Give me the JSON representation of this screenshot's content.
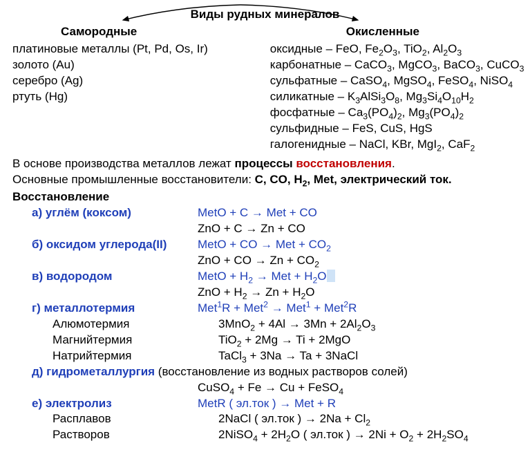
{
  "title": "Виды рудных минералов",
  "heads": {
    "left": "Самородные",
    "right": "Окисленные"
  },
  "native": [
    "платиновые металлы (Pt, Pd, Os, Ir)",
    "золото  (Au)",
    "серебро (Ag)",
    "ртуть (Hg)"
  ],
  "oxidized": [
    {
      "name": "оксидные – ",
      "formula_html": "FeO, Fe<sub>2</sub>O<sub>3</sub>, TiO<sub>2</sub>, Al<sub>2</sub>O<sub>3</sub>"
    },
    {
      "name": "карбонатные – ",
      "formula_html": "CaCO<sub>3</sub>, MgCO<sub>3</sub>,  BaCO<sub>3</sub>, CuCO<sub>3</sub>"
    },
    {
      "name": "сульфатные – ",
      "formula_html": "CaSO<sub>4</sub>, MgSO<sub>4</sub>, FeSO<sub>4</sub>, NiSO<sub>4</sub>"
    },
    {
      "name": "силикатные – ",
      "formula_html": "K<sub>3</sub>AlSi<sub>3</sub>O<sub>8</sub>, Mg<sub>3</sub>Si<sub>4</sub>O<sub>10</sub>H<sub>2</sub>"
    },
    {
      "name": "фосфатные – ",
      "formula_html": "Ca<sub>3</sub>(PO<sub>4</sub>)<sub>2</sub>,  Mg<sub>3</sub>(PO<sub>4</sub>)<sub>2</sub>"
    },
    {
      "name": "сульфидные – ",
      "formula_html": "FeS, CuS, HgS"
    },
    {
      "name": "галогенидные – ",
      "formula_html": "NaCl, KBr,  MgI<sub>2</sub>, CaF<sub>2</sub>"
    }
  ],
  "p1": {
    "pre": "В основе производства металлов лежат ",
    "bold": "процессы ",
    "red": "восстановления",
    "post": "."
  },
  "p2": {
    "pre": "Основные промышленные восстановители: ",
    "bold_html": "C, CO, H<sub>2</sub>, Met, электрический ток."
  },
  "section": "Восстановление",
  "methods": [
    {
      "label": "а) углём (коксом)",
      "eq_blue_html": "МetO  +  C   →   Met  +  CO",
      "eq2_html": "ZnO  +  C  →  Zn  +  CO"
    },
    {
      "label": "б) оксидом углерода(II)",
      "eq_blue_html": "МetO  +  CO  →   Met  +  CO<sub>2</sub>",
      "eq2_html": "ZnO  +  CO  →  Zn  +  CO<sub>2</sub>"
    },
    {
      "label": "в)  водородом",
      "eq_blue_html": "МetO  +  H<sub>2</sub>   →   Met  +  H<sub>2</sub>O",
      "eq2_html": "ZnO  +  H<sub>2</sub>  →  Zn  +  H<sub>2</sub>O",
      "highlight_after": true
    },
    {
      "label": "г)  металлотермия",
      "eq_blue_html": "Met<sup>1</sup>R  +  Met<sup>2</sup> →   Met<sup>1</sup>  +  Met<sup>2</sup>R",
      "subs": [
        {
          "name": "Алюмотермия",
          "eq_html": "3MnO<sub>2</sub>  +  4Al  →  3Mn  +  2Al<sub>2</sub>O<sub>3</sub>"
        },
        {
          "name": "Магнийтермия",
          "eq_html": "TiO<sub>2</sub>  +  2Mg  →  Ti  +  2MgO"
        },
        {
          "name": "Натрийтермия",
          "eq_html": "TaCl<sub>3</sub>  +  3Na →  Ta  +  3NaCl"
        }
      ]
    },
    {
      "label": "д) гидрометаллургия",
      "note": " (восстановление из водных растворов солей)",
      "eq2_html": "CuSO<sub>4</sub> + Fe → Cu + FeSO<sub>4</sub>"
    },
    {
      "label": "е) электролиз",
      "eq_blue_html": "МetR   ( эл.ток ) →  Met  +  R",
      "subs": [
        {
          "name": "Расплавов",
          "eq_html": "2NaCl  ( эл.ток ) → 2Na  +  Cl<sub>2</sub>"
        },
        {
          "name": "Растворов",
          "eq_html": "2NiSO<sub>4</sub>  +  2H<sub>2</sub>O  ( эл.ток ) → 2Ni  +  O<sub>2</sub>  +  2H<sub>2</sub>SO<sub>4</sub>"
        }
      ]
    }
  ]
}
